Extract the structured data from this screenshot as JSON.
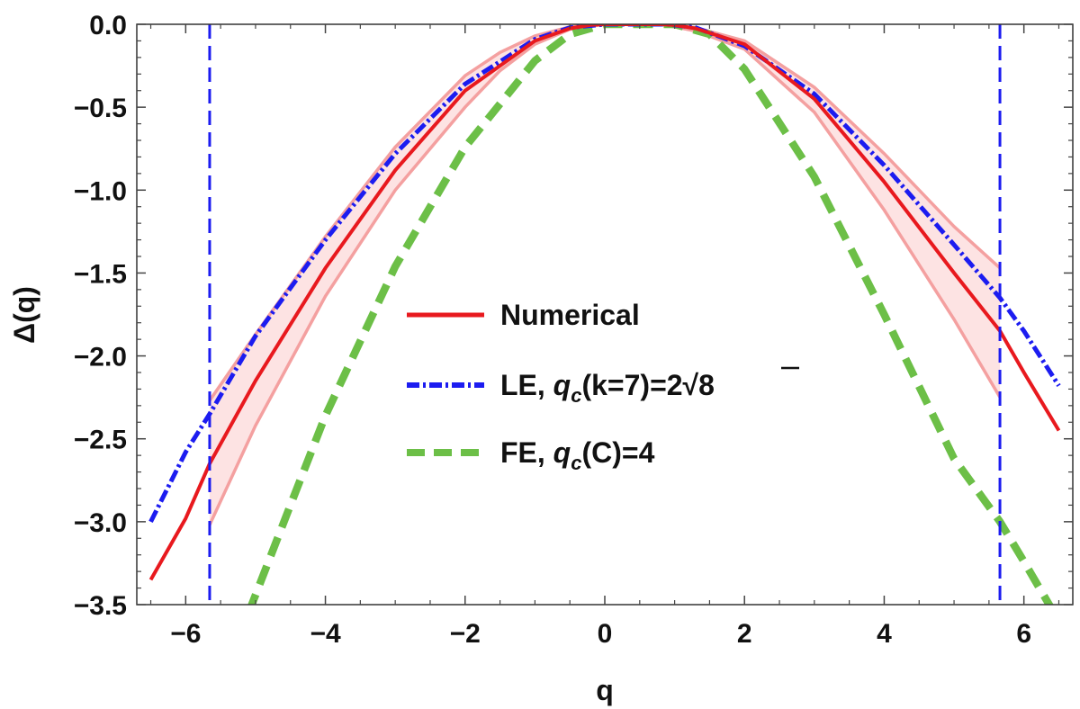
{
  "chart_data": {
    "type": "line",
    "xlabel": "q",
    "ylabel": "Δ(q)",
    "xlim": [
      -6.7,
      6.7
    ],
    "ylim": [
      -3.5,
      0.0
    ],
    "xticks": [
      -6,
      -4,
      -2,
      0,
      2,
      4,
      6
    ],
    "yticks": [
      0.0,
      -0.5,
      -1.0,
      -1.5,
      -2.0,
      -2.5,
      -3.0,
      -3.5
    ],
    "xtick_labels": [
      "−6",
      "−4",
      "−2",
      "0",
      "2",
      "4",
      "6"
    ],
    "ytick_labels": [
      "0.0",
      "−0.5",
      "−1.0",
      "−1.5",
      "−2.0",
      "−2.5",
      "−3.0",
      "−3.5"
    ],
    "vertical_lines": [
      -5.657,
      5.657
    ],
    "legend_placement": "center",
    "grid": false,
    "series": [
      {
        "name": "Numerical",
        "style": "solid",
        "color": "#e8191e",
        "x": [
          -6.5,
          -6.0,
          -5.657,
          -5.0,
          -4.0,
          -3.0,
          -2.0,
          -1.0,
          -0.5,
          -0.2,
          0.0,
          0.8,
          1.0,
          1.3,
          2.0,
          3.0,
          4.0,
          5.0,
          5.657,
          6.0,
          6.5
        ],
        "y": [
          -3.35,
          -2.98,
          -2.65,
          -2.15,
          -1.47,
          -0.88,
          -0.4,
          -0.1,
          -0.025,
          -0.004,
          0.0,
          0.0,
          -0.005,
          -0.025,
          -0.12,
          -0.45,
          -0.95,
          -1.5,
          -1.85,
          -2.1,
          -2.45
        ]
      },
      {
        "name": "LE, q_c(k=7)=2√8",
        "style": "dash-dot",
        "color": "#1c1cf0",
        "x": [
          -6.5,
          -6.0,
          -5.657,
          -5.0,
          -4.0,
          -3.0,
          -2.0,
          -1.0,
          -0.5,
          0.0,
          0.9,
          1.3,
          2.0,
          3.0,
          4.0,
          5.0,
          5.657,
          6.0,
          6.5
        ],
        "y": [
          -3.0,
          -2.58,
          -2.35,
          -1.88,
          -1.3,
          -0.78,
          -0.36,
          -0.09,
          -0.02,
          0.0,
          0.0,
          -0.02,
          -0.13,
          -0.42,
          -0.85,
          -1.33,
          -1.65,
          -1.85,
          -2.18
        ]
      },
      {
        "name": "FE, q_c(C)=4",
        "style": "dashed",
        "color": "#6cbf47",
        "x": [
          -5.1,
          -4.5,
          -4.0,
          -3.0,
          -2.0,
          -1.0,
          -0.5,
          0.0,
          1.0,
          1.5,
          2.0,
          3.0,
          4.0,
          5.0,
          5.657,
          6.0,
          6.5
        ],
        "y": [
          -3.55,
          -2.9,
          -2.36,
          -1.46,
          -0.74,
          -0.22,
          -0.06,
          0.0,
          0.0,
          -0.06,
          -0.27,
          -0.92,
          -1.75,
          -2.62,
          -3.0,
          -3.24,
          -3.6
        ]
      }
    ],
    "band": {
      "color": "#f4a0a0",
      "x": [
        -5.657,
        -5.0,
        -4.0,
        -3.0,
        -2.0,
        -1.5,
        -1.0,
        -0.5,
        0.0,
        0.8,
        1.3,
        2.0,
        3.0,
        4.0,
        5.0,
        5.657
      ],
      "upper": [
        -2.27,
        -1.87,
        -1.28,
        -0.74,
        -0.31,
        -0.17,
        -0.07,
        -0.015,
        0.0,
        0.0,
        -0.02,
        -0.1,
        -0.38,
        -0.78,
        -1.22,
        -1.47
      ],
      "lower": [
        -3.02,
        -2.42,
        -1.64,
        -1.0,
        -0.5,
        -0.28,
        -0.12,
        -0.03,
        0.0,
        0.0,
        -0.04,
        -0.15,
        -0.53,
        -1.12,
        -1.78,
        -2.25
      ]
    },
    "legend": {
      "numerical": "Numerical",
      "le_prefix": "LE, ",
      "le_q": "q",
      "le_sub": "c",
      "le_mid": "(k=7)=2",
      "le_sqrt_num": "8",
      "fe_prefix": "FE, ",
      "fe_q": "q",
      "fe_sub": "c",
      "fe_rest": "(C)=4"
    }
  }
}
